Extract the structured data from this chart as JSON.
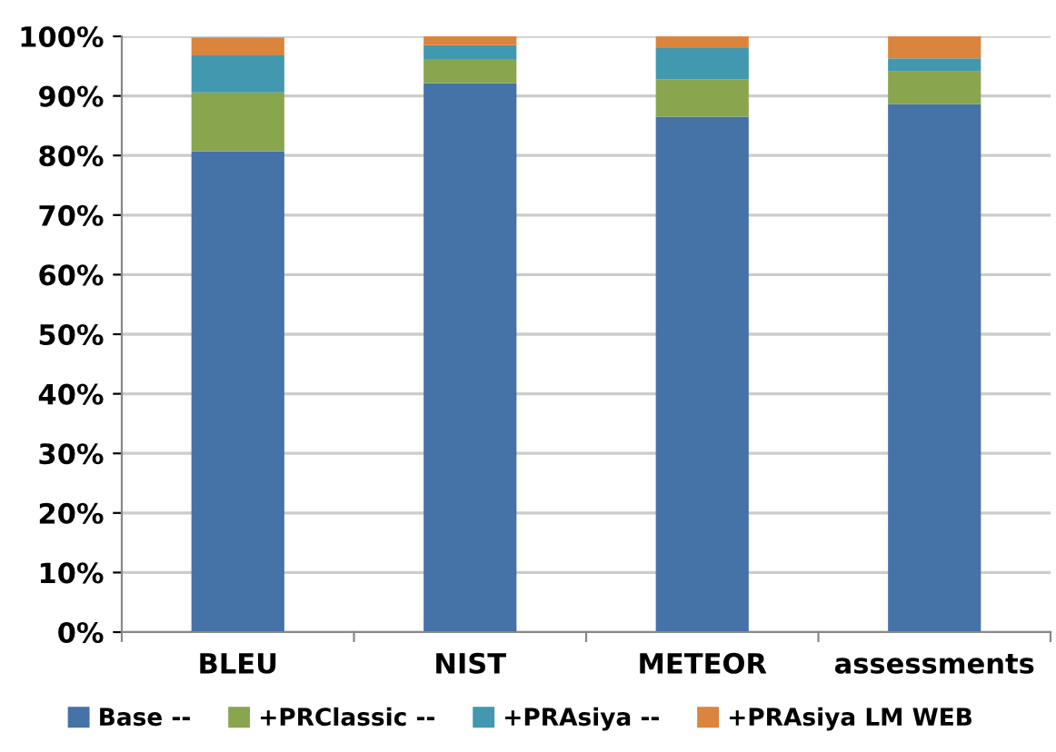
{
  "chart_data": {
    "type": "bar",
    "stacked": true,
    "categories": [
      "BLEU",
      "NIST",
      "METEOR",
      "assessments"
    ],
    "series": [
      {
        "name": "Base --",
        "color": "#4572a7",
        "values": [
          80.7,
          92.1,
          86.5,
          88.6
        ]
      },
      {
        "name": "+PRClassic --",
        "color": "#89a54e",
        "values": [
          9.9,
          4.1,
          6.3,
          5.5
        ]
      },
      {
        "name": "+PRAsiya --",
        "color": "#4198af",
        "values": [
          6.2,
          2.3,
          5.2,
          2.2
        ]
      },
      {
        "name": "+PRAsiya LM WEB",
        "color": "#db843d",
        "values": [
          3.0,
          1.5,
          2.0,
          3.7
        ]
      }
    ],
    "ylim": [
      0,
      100
    ],
    "yticks": [
      {
        "value": 0,
        "label": "0%"
      },
      {
        "value": 10,
        "label": "10%"
      },
      {
        "value": 20,
        "label": "20%"
      },
      {
        "value": 30,
        "label": "30%"
      },
      {
        "value": 40,
        "label": "40%"
      },
      {
        "value": 50,
        "label": "50%"
      },
      {
        "value": 60,
        "label": "60%"
      },
      {
        "value": 70,
        "label": "70%"
      },
      {
        "value": 80,
        "label": "80%"
      },
      {
        "value": 90,
        "label": "90%"
      },
      {
        "value": 100,
        "label": "100%"
      }
    ],
    "grid": "y",
    "legend": "bottom"
  }
}
